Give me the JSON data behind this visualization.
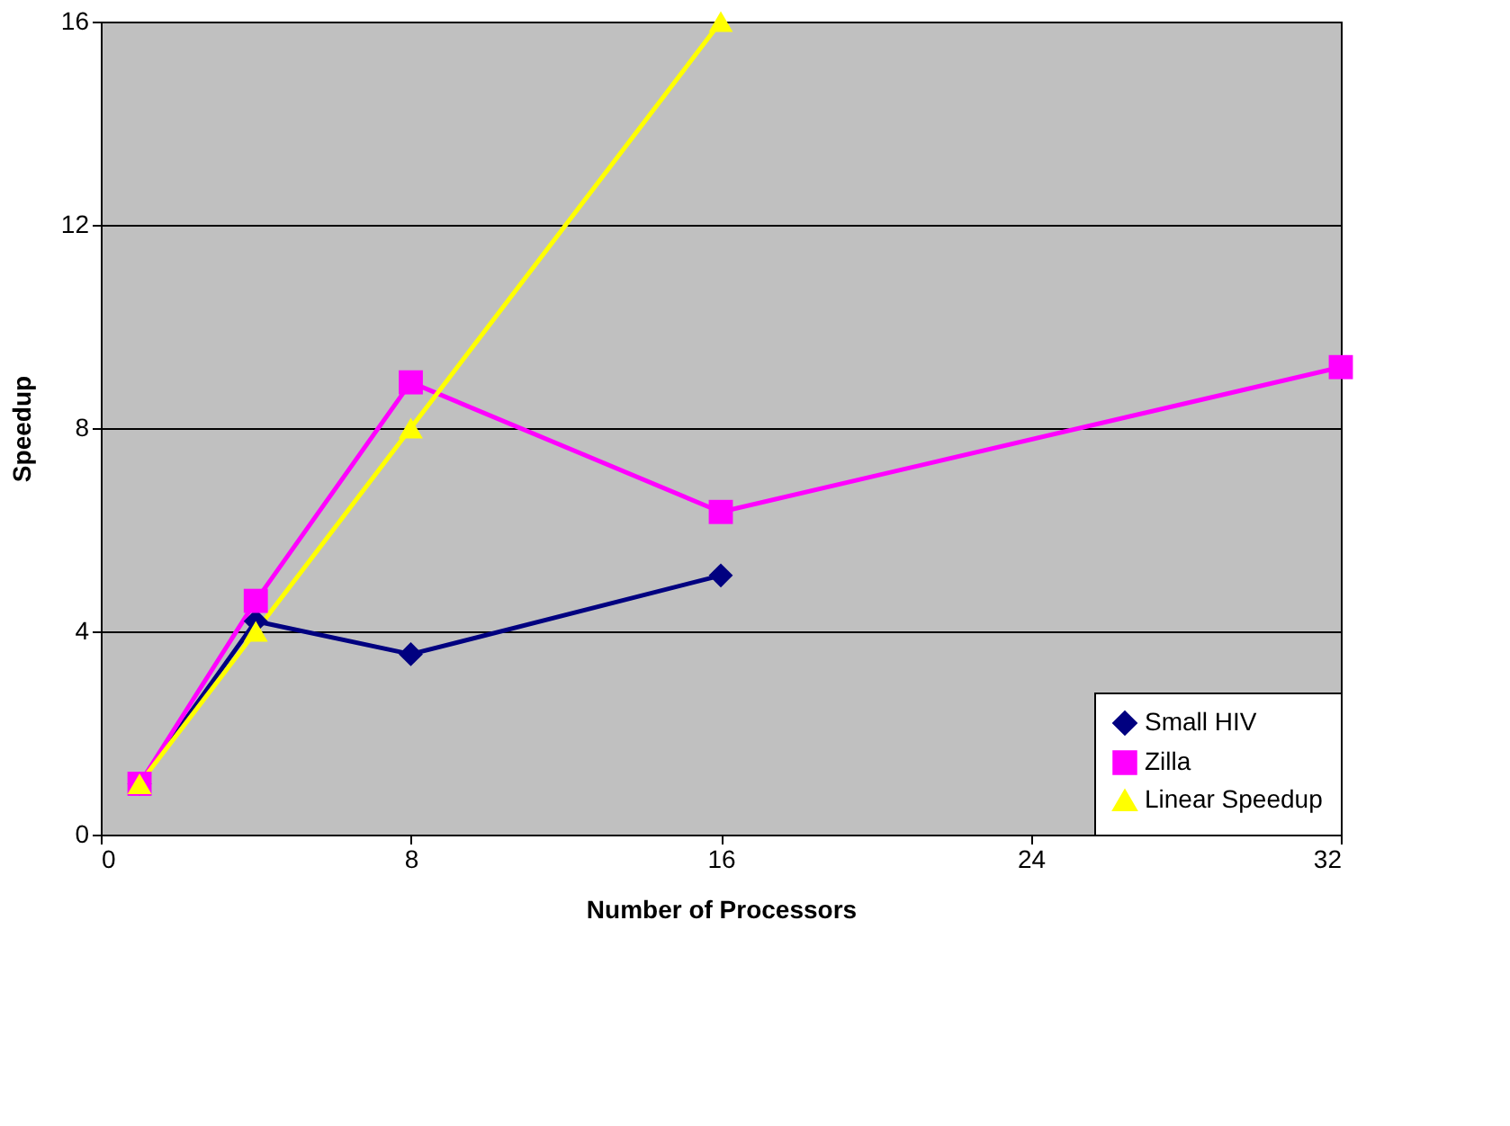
{
  "chart_data": {
    "type": "line",
    "xlabel": "Number of Processors",
    "ylabel": "Speedup",
    "xlim": [
      0,
      32
    ],
    "xticks": [
      0,
      8,
      16,
      24,
      32
    ],
    "ylim": [
      0,
      16
    ],
    "yticks": [
      0,
      4,
      8,
      12,
      16
    ],
    "grid": "y",
    "legend": "bottom right",
    "series": [
      {
        "name": "Small HIV",
        "color": "#000080",
        "marker": "diamond",
        "x": [
          1,
          4,
          8,
          16
        ],
        "values": [
          1,
          4.2,
          3.55,
          5.1
        ]
      },
      {
        "name": "Zilla",
        "color": "#ff00ff",
        "marker": "square",
        "x": [
          1,
          4,
          8,
          16,
          32
        ],
        "values": [
          1,
          4.6,
          8.9,
          6.35,
          9.2
        ]
      },
      {
        "name": "Linear Speedup",
        "color": "#ffff00",
        "marker": "triangle",
        "x": [
          1,
          4,
          8,
          16
        ],
        "values": [
          1,
          4,
          8,
          16
        ]
      }
    ]
  }
}
